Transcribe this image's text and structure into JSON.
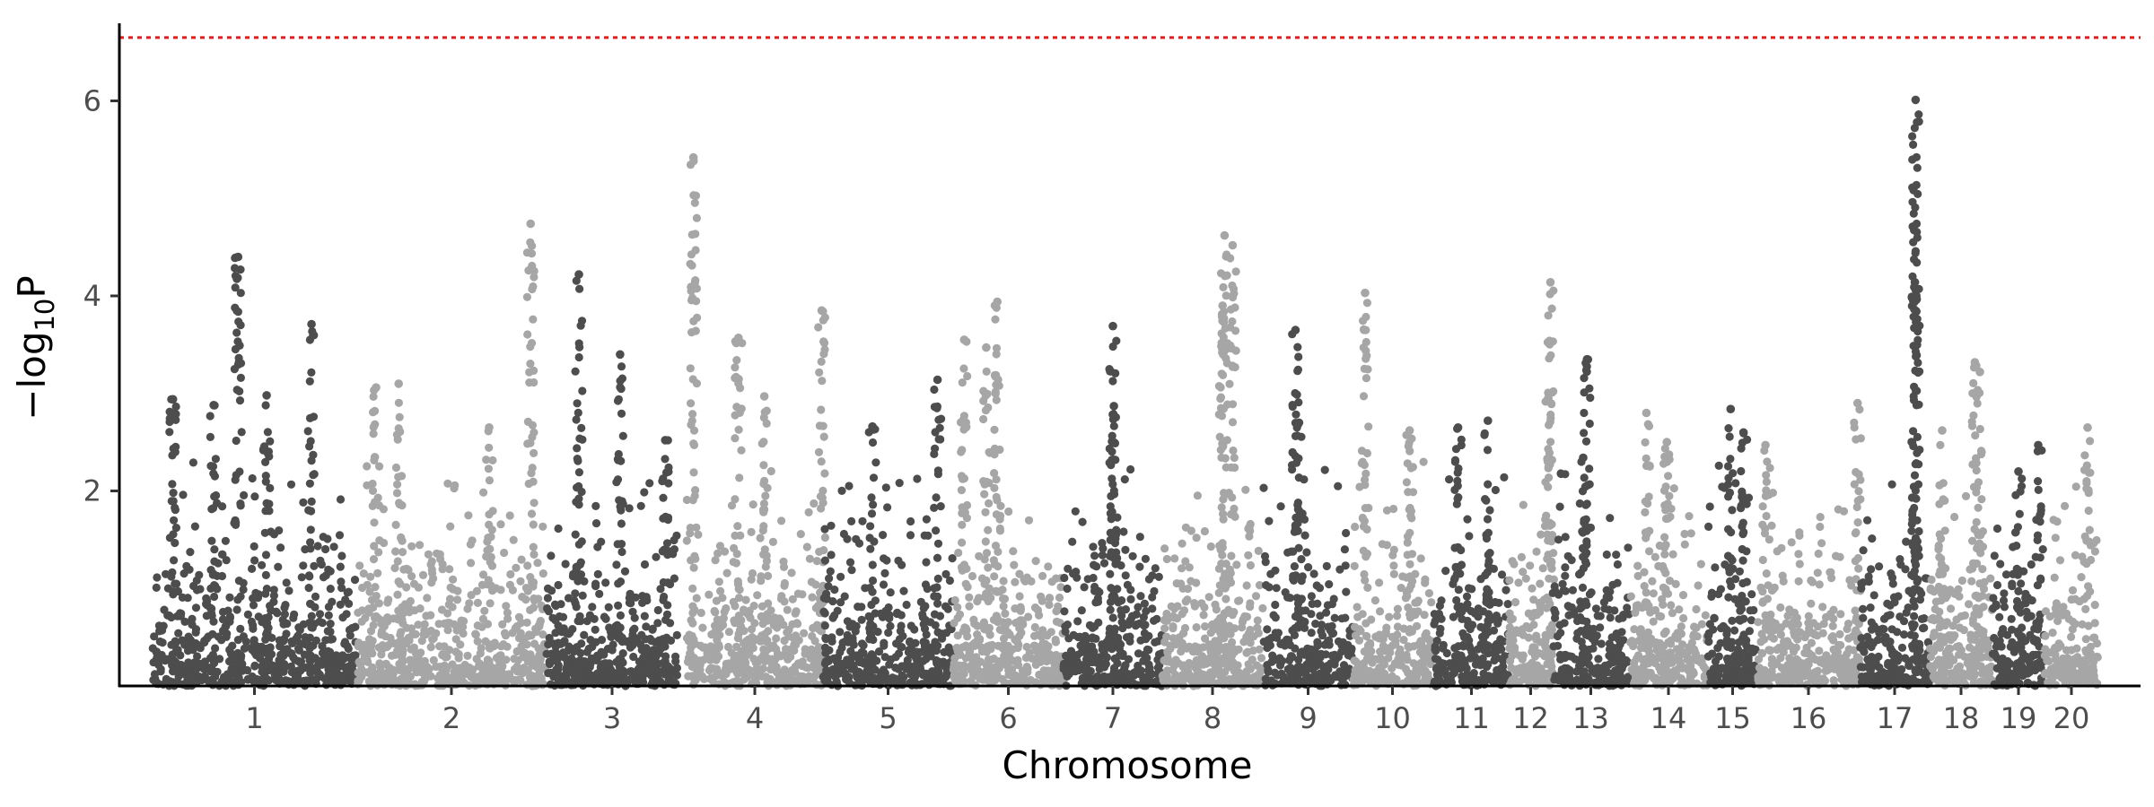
{
  "chart_data": {
    "type": "scatter",
    "subtype": "manhattan",
    "title": "",
    "xlabel": "Chromosome",
    "ylabel_prefix": "−log",
    "ylabel_sub": "10",
    "ylabel_suffix": "P",
    "ylim": [
      0,
      6.8
    ],
    "yticks": [
      2,
      4,
      6
    ],
    "grid": false,
    "legend": "none",
    "threshold": {
      "y": 6.65,
      "color": "#e41a1c",
      "style": "dotted"
    },
    "colors": {
      "dark": "#4d4d4d",
      "light": "#a6a6a6"
    },
    "chromosomes": [
      {
        "label": "1",
        "color": "dark",
        "peaks": [
          [
            0.42,
            4.4
          ],
          [
            0.78,
            3.71
          ],
          [
            0.1,
            2.94
          ],
          [
            0.56,
            2.98
          ],
          [
            0.3,
            2.88
          ]
        ]
      },
      {
        "label": "2",
        "color": "light",
        "peaks": [
          [
            0.92,
            4.74
          ],
          [
            0.22,
            3.1
          ],
          [
            0.1,
            3.06
          ],
          [
            0.7,
            2.65
          ]
        ]
      },
      {
        "label": "3",
        "color": "dark",
        "peaks": [
          [
            0.25,
            4.22
          ],
          [
            0.56,
            3.4
          ],
          [
            0.9,
            2.52
          ]
        ]
      },
      {
        "label": "4",
        "color": "light",
        "peaks": [
          [
            0.05,
            5.42
          ],
          [
            0.99,
            3.85
          ],
          [
            0.38,
            3.57
          ],
          [
            0.57,
            2.97
          ]
        ]
      },
      {
        "label": "5",
        "color": "dark",
        "peaks": [
          [
            0.88,
            3.14
          ],
          [
            0.38,
            2.66
          ]
        ]
      },
      {
        "label": "6",
        "color": "light",
        "peaks": [
          [
            0.4,
            3.94
          ],
          [
            0.1,
            3.55
          ],
          [
            0.3,
            3.47
          ]
        ]
      },
      {
        "label": "7",
        "color": "dark",
        "peaks": [
          [
            0.5,
            3.69
          ],
          [
            0.51,
            2.87
          ]
        ]
      },
      {
        "label": "8",
        "color": "light",
        "peaks": [
          [
            0.62,
            4.62
          ],
          [
            0.7,
            4.52
          ],
          [
            0.6,
            3.9
          ]
        ]
      },
      {
        "label": "9",
        "color": "dark",
        "peaks": [
          [
            0.36,
            3.65
          ],
          [
            0.4,
            2.7
          ]
        ]
      },
      {
        "label": "10",
        "color": "light",
        "peaks": [
          [
            0.15,
            4.03
          ],
          [
            0.72,
            2.62
          ]
        ]
      },
      {
        "label": "11",
        "color": "dark",
        "peaks": [
          [
            0.72,
            2.72
          ],
          [
            0.32,
            2.65
          ]
        ]
      },
      {
        "label": "12",
        "color": "light",
        "peaks": [
          [
            0.95,
            4.14
          ],
          [
            0.9,
            2.95
          ]
        ]
      },
      {
        "label": "13",
        "color": "dark",
        "peaks": [
          [
            0.45,
            3.35
          ],
          [
            0.4,
            2.34
          ]
        ]
      },
      {
        "label": "14",
        "color": "light",
        "peaks": [
          [
            0.22,
            2.8
          ],
          [
            0.48,
            2.5
          ]
        ]
      },
      {
        "label": "15",
        "color": "dark",
        "peaks": [
          [
            0.46,
            2.84
          ],
          [
            0.72,
            2.6
          ]
        ]
      },
      {
        "label": "16",
        "color": "light",
        "peaks": [
          [
            0.98,
            2.9
          ],
          [
            0.08,
            2.47
          ]
        ]
      },
      {
        "label": "17",
        "color": "dark",
        "peaks": [
          [
            0.8,
            6.01
          ],
          [
            0.79,
            4.14
          ],
          [
            0.81,
            3.84
          ]
        ]
      },
      {
        "label": "18",
        "color": "light",
        "peaks": [
          [
            0.72,
            3.32
          ],
          [
            0.8,
            3.22
          ],
          [
            0.2,
            2.62
          ]
        ]
      },
      {
        "label": "19",
        "color": "dark",
        "peaks": [
          [
            0.88,
            2.47
          ],
          [
            0.5,
            2.2
          ]
        ]
      },
      {
        "label": "20",
        "color": "light",
        "peaks": [
          [
            0.8,
            2.65
          ]
        ]
      }
    ]
  }
}
